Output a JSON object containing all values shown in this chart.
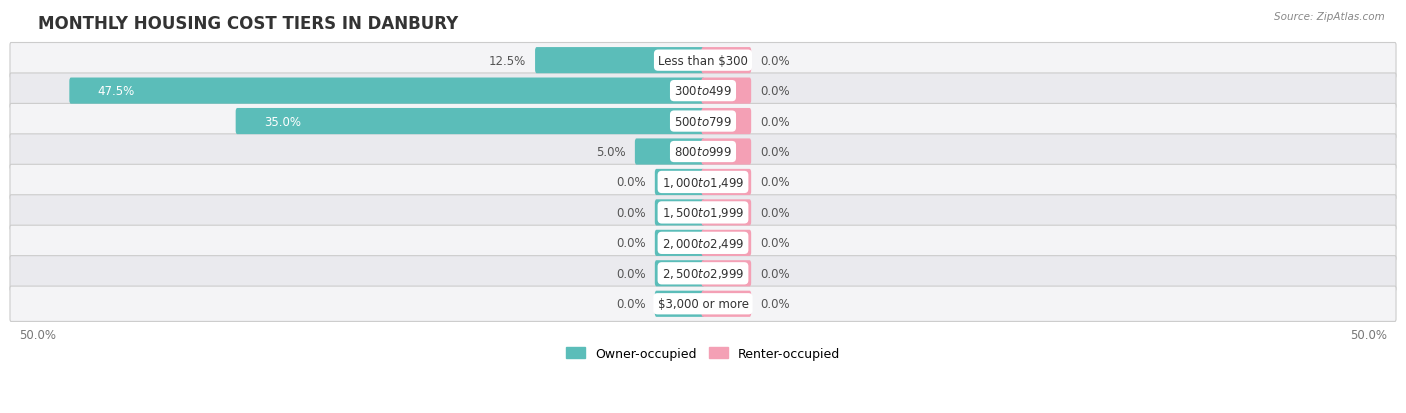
{
  "title": "MONTHLY HOUSING COST TIERS IN DANBURY",
  "source": "Source: ZipAtlas.com",
  "categories": [
    "Less than $300",
    "$300 to $499",
    "$500 to $799",
    "$800 to $999",
    "$1,000 to $1,499",
    "$1,500 to $1,999",
    "$2,000 to $2,499",
    "$2,500 to $2,999",
    "$3,000 or more"
  ],
  "owner_values": [
    12.5,
    47.5,
    35.0,
    5.0,
    0.0,
    0.0,
    0.0,
    0.0,
    0.0
  ],
  "renter_values": [
    0.0,
    0.0,
    0.0,
    0.0,
    0.0,
    0.0,
    0.0,
    0.0,
    0.0
  ],
  "owner_color": "#5bbdb9",
  "renter_color": "#f4a0b5",
  "row_bg_light": "#f4f4f6",
  "row_bg_dark": "#eaeaee",
  "axis_limit": 50.0,
  "bar_height": 0.62,
  "stub_size": 3.5,
  "title_fontsize": 12,
  "label_fontsize": 8.5,
  "source_fontsize": 7.5,
  "legend_fontsize": 9,
  "cat_label_fontsize": 8.5,
  "value_label_dark": "#555555",
  "value_label_white": "#ffffff"
}
